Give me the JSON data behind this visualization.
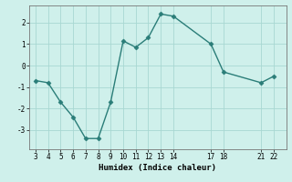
{
  "x": [
    3,
    4,
    5,
    6,
    7,
    8,
    9,
    10,
    11,
    12,
    13,
    14,
    17,
    18,
    21,
    22
  ],
  "y": [
    -0.7,
    -0.8,
    -1.7,
    -2.4,
    -3.4,
    -3.4,
    -1.7,
    1.15,
    0.85,
    1.3,
    2.4,
    2.3,
    1.0,
    -0.3,
    -0.8,
    -0.5
  ],
  "xlabel": "Humidex (Indice chaleur)",
  "xlim": [
    2.5,
    23.0
  ],
  "ylim": [
    -3.9,
    2.8
  ],
  "xticks": [
    3,
    4,
    5,
    6,
    7,
    8,
    9,
    10,
    11,
    12,
    13,
    14,
    17,
    18,
    21,
    22
  ],
  "yticks": [
    -3,
    -2,
    -1,
    0,
    1,
    2
  ],
  "line_color": "#2a7d78",
  "marker_color": "#2a7d78",
  "bg_color": "#cff0eb",
  "grid_color": "#a8d8d2",
  "spine_color": "#777777",
  "tick_fontsize": 5.5,
  "xlabel_fontsize": 6.5,
  "linewidth": 1.0,
  "markersize": 2.5
}
